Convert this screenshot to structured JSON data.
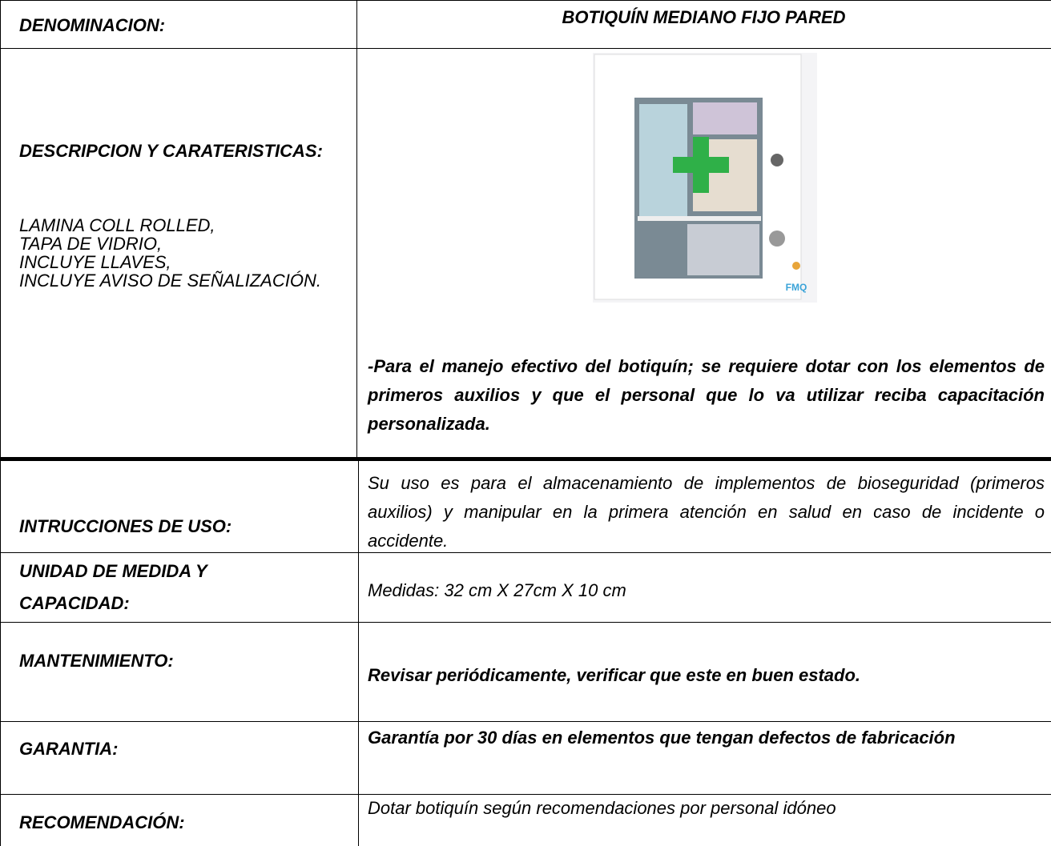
{
  "rows": [
    {
      "label": "DENOMINACION:",
      "value": "BOTIQUÍN MEDIANO FIJO PARED"
    },
    {
      "label": "DESCRIPCION Y CARATERISTICAS:",
      "details": [
        "LAMINA COLL ROLLED,",
        "TAPA DE VIDRIO,",
        "INCLUYE LLAVES,",
        "INCLUYE AVISO DE SEÑALIZACIÓN."
      ],
      "image_logo": "FMQ",
      "value": "-Para el manejo efectivo del botiquín; se requiere dotar con los elementos de primeros auxilios y que el personal que lo va utilizar reciba capacitación personalizada."
    },
    {
      "label": "INTRUCCIONES DE USO:",
      "value": "Su uso es para el almacenamiento de implementos de bioseguridad (primeros auxilios) y manipular en la primera atención en salud en caso de incidente o accidente."
    },
    {
      "label": "UNIDAD DE MEDIDA Y CAPACIDAD:",
      "value": "Medidas:  32 cm X 27cm X 10 cm"
    },
    {
      "label": "MANTENIMIENTO:",
      "value": "Revisar periódicamente, verificar que este en buen estado."
    },
    {
      "label": "GARANTIA:",
      "value": "Garantía por 30 días en elementos que tengan defectos de fabricación"
    },
    {
      "label": "RECOMENDACIÓN:",
      "value": "Dotar botiquín según recomendaciones por personal idóneo"
    }
  ]
}
